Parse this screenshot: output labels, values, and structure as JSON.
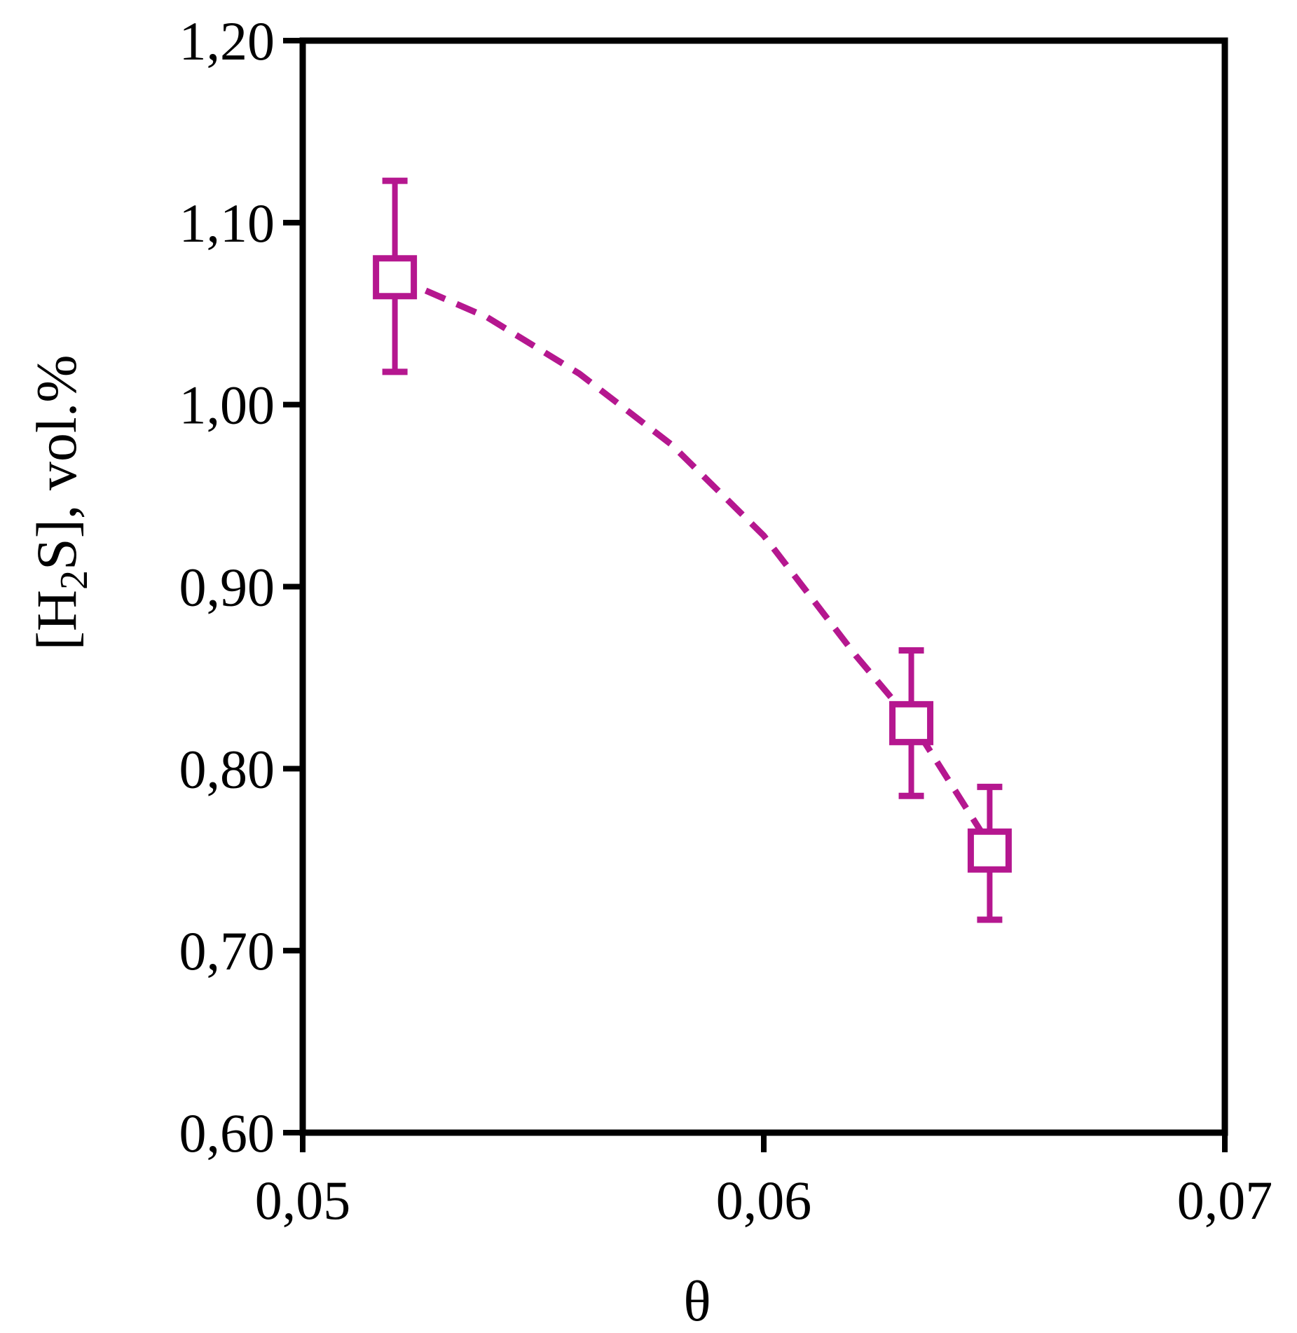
{
  "chart_data": {
    "type": "scatter",
    "title": "",
    "xlabel": "θ",
    "ylabel_parts": {
      "pre": "[H",
      "sub": "2",
      "post": "S], vol.%"
    },
    "xlim": [
      0.05,
      0.07
    ],
    "ylim": [
      0.6,
      1.2
    ],
    "x_ticks": [
      0.05,
      0.06,
      0.07
    ],
    "x_tick_labels": [
      "0,05",
      "0,06",
      "0,07"
    ],
    "y_ticks": [
      0.6,
      0.7,
      0.8,
      0.9,
      1.0,
      1.1,
      1.2
    ],
    "y_tick_labels": [
      "0,60",
      "0,70",
      "0,80",
      "0,90",
      "1,00",
      "1,10",
      "1,20"
    ],
    "grid": false,
    "series": [
      {
        "marker": "open-square",
        "color": "#b5178f",
        "points": [
          {
            "x": 0.052,
            "y": 1.07,
            "err_low": 1.018,
            "err_high": 1.123
          },
          {
            "x": 0.0632,
            "y": 0.825,
            "err_low": 0.785,
            "err_high": 0.865
          },
          {
            "x": 0.0649,
            "y": 0.755,
            "err_low": 0.717,
            "err_high": 0.79
          }
        ]
      }
    ],
    "trendline": {
      "style": "dashed",
      "color": "#b5178f",
      "points": [
        [
          0.052,
          1.07
        ],
        [
          0.054,
          1.048
        ],
        [
          0.056,
          1.017
        ],
        [
          0.058,
          0.978
        ],
        [
          0.06,
          0.928
        ],
        [
          0.062,
          0.862
        ],
        [
          0.0632,
          0.826
        ],
        [
          0.0649,
          0.758
        ]
      ]
    }
  }
}
